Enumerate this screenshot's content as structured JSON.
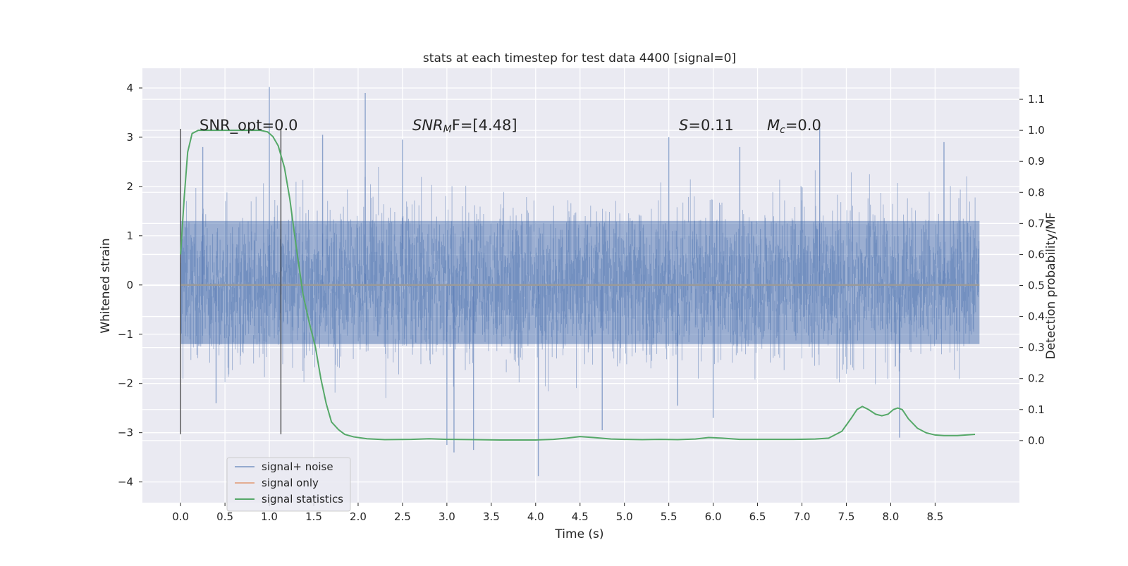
{
  "chart_data": {
    "type": "line",
    "title": "stats at each timestep for test data 4400 [signal=0]",
    "xlabel": "Time (s)",
    "ylabel": "Whitened strain",
    "ylabel_right": "Detection probability/MF",
    "xlim": [
      -0.43,
      9.45
    ],
    "ylim": [
      -4.42,
      4.4
    ],
    "ylim_right": [
      -0.2,
      1.2
    ],
    "xticks": [
      "0.0",
      "0.5",
      "1.0",
      "1.5",
      "2.0",
      "2.5",
      "3.0",
      "3.5",
      "4.0",
      "4.5",
      "5.0",
      "5.5",
      "6.0",
      "6.5",
      "7.0",
      "7.5",
      "8.0",
      "8.5"
    ],
    "yticks": [
      "4",
      "3",
      "2",
      "1",
      "0",
      "−1",
      "−2",
      "−3",
      "−4"
    ],
    "yticks_right": [
      "1.1",
      "1.0",
      "0.9",
      "0.8",
      "0.7",
      "0.6",
      "0.5",
      "0.4",
      "0.3",
      "0.2",
      "0.1",
      "0.0"
    ],
    "grid": true,
    "annotations": {
      "snr_opt": "SNR_opt=0.0",
      "snr_mf_sym": "SNR",
      "snr_mf_sub": "M",
      "snr_mf_rest": "F=[4.48]",
      "s_sym": "S",
      "s_rest": "=0.11",
      "mc_sym": "M",
      "mc_sub": "c",
      "mc_rest": "=0.0"
    },
    "window_markers": {
      "x": [
        0.0,
        1.13
      ],
      "y_range": [
        -3.03,
        3.17
      ]
    },
    "series": [
      {
        "name": "signal+ noise",
        "color": "#4c72b0",
        "axis": "left",
        "noise_envelope": {
          "x_start": 0.0,
          "x_end": 9.0,
          "typical_band": [
            -1.2,
            1.3
          ]
        },
        "spikes": [
          {
            "x": 1.0,
            "y": 4.02
          },
          {
            "x": 2.08,
            "y": 3.9
          },
          {
            "x": 7.2,
            "y": 3.2
          },
          {
            "x": 4.03,
            "y": -3.88
          },
          {
            "x": 3.08,
            "y": -3.4
          },
          {
            "x": 3.3,
            "y": -3.35
          },
          {
            "x": 3.0,
            "y": -3.25
          },
          {
            "x": 8.1,
            "y": -3.1
          },
          {
            "x": 4.75,
            "y": -2.95
          },
          {
            "x": 1.6,
            "y": 3.05
          },
          {
            "x": 2.5,
            "y": 2.95
          },
          {
            "x": 5.5,
            "y": 3.0
          },
          {
            "x": 6.3,
            "y": 2.8
          },
          {
            "x": 8.6,
            "y": 2.9
          },
          {
            "x": 0.25,
            "y": 2.8
          },
          {
            "x": 6.0,
            "y": -2.7
          },
          {
            "x": 5.6,
            "y": -2.45
          },
          {
            "x": 0.4,
            "y": -2.4
          }
        ]
      },
      {
        "name": "signal only",
        "color": "#dd8452",
        "axis": "left",
        "x": [
          0.0,
          9.0
        ],
        "y": [
          0.0,
          0.0
        ]
      },
      {
        "name": "signal statistics",
        "color": "#55a868",
        "axis": "right",
        "x": [
          0.0,
          0.04,
          0.08,
          0.13,
          0.2,
          0.3,
          0.45,
          0.6,
          0.75,
          0.9,
          0.98,
          1.04,
          1.1,
          1.17,
          1.23,
          1.3,
          1.38,
          1.45,
          1.52,
          1.58,
          1.64,
          1.7,
          1.78,
          1.85,
          1.95,
          2.1,
          2.3,
          2.6,
          2.8,
          3.0,
          3.3,
          3.6,
          4.0,
          4.2,
          4.35,
          4.5,
          4.65,
          4.85,
          5.0,
          5.2,
          5.4,
          5.6,
          5.8,
          5.95,
          6.1,
          6.3,
          6.6,
          6.9,
          7.15,
          7.3,
          7.45,
          7.55,
          7.62,
          7.68,
          7.75,
          7.83,
          7.9,
          7.97,
          8.03,
          8.08,
          8.13,
          8.2,
          8.3,
          8.4,
          8.5,
          8.6,
          8.75,
          8.95
        ],
        "y": [
          0.6,
          0.78,
          0.93,
          0.99,
          1.0,
          1.0,
          1.0,
          1.0,
          1.0,
          1.0,
          0.995,
          0.98,
          0.95,
          0.88,
          0.78,
          0.63,
          0.47,
          0.38,
          0.3,
          0.2,
          0.12,
          0.06,
          0.035,
          0.02,
          0.012,
          0.006,
          0.003,
          0.004,
          0.006,
          0.004,
          0.003,
          0.002,
          0.002,
          0.004,
          0.008,
          0.013,
          0.01,
          0.005,
          0.004,
          0.003,
          0.004,
          0.003,
          0.005,
          0.01,
          0.008,
          0.004,
          0.004,
          0.004,
          0.005,
          0.008,
          0.03,
          0.07,
          0.1,
          0.11,
          0.1,
          0.085,
          0.08,
          0.085,
          0.1,
          0.105,
          0.1,
          0.07,
          0.04,
          0.025,
          0.018,
          0.016,
          0.016,
          0.02
        ]
      }
    ],
    "legend": {
      "position": "lower-left",
      "entries": [
        "signal+ noise",
        "signal only",
        "signal statistics"
      ]
    }
  }
}
